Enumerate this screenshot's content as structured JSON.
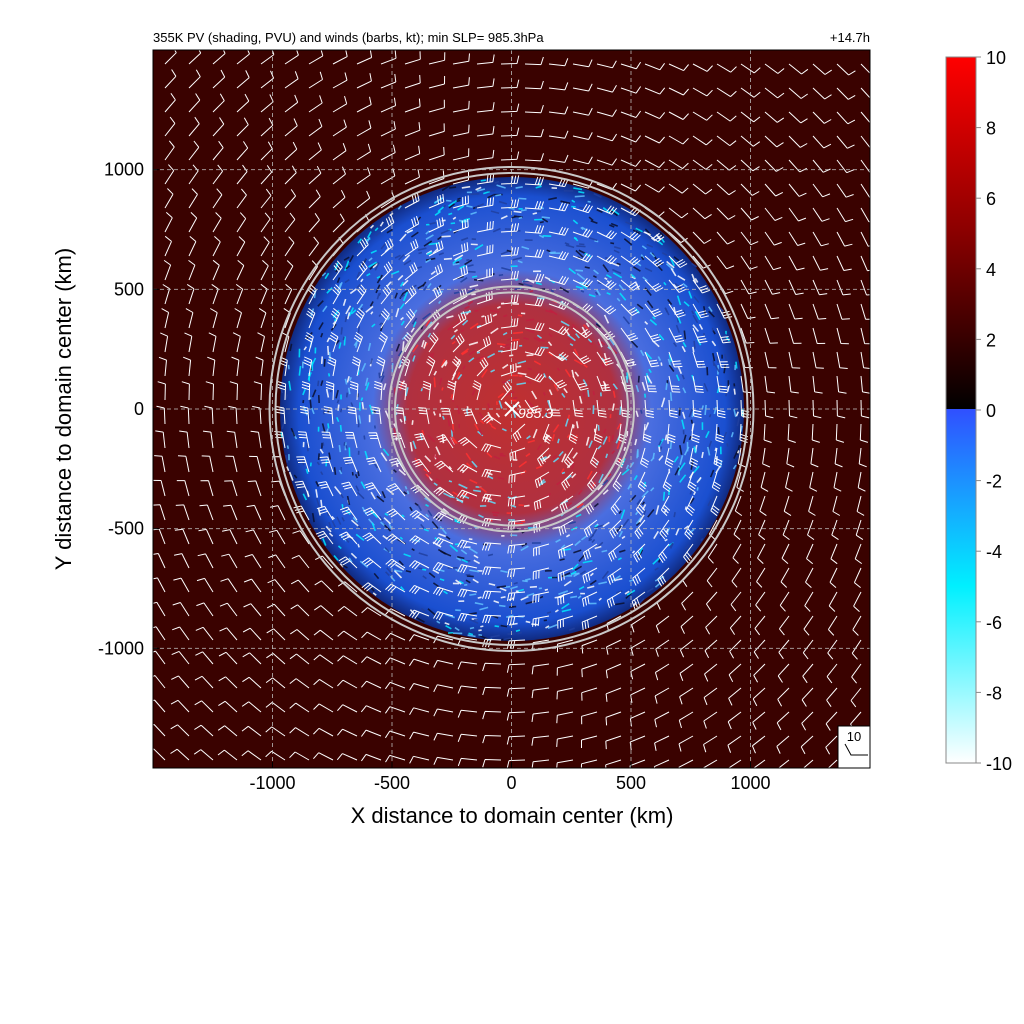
{
  "chart_data": {
    "type": "heatmap",
    "title": "355K PV (shading, PVU) and winds (barbs, kt); min SLP=  985.3hPa",
    "time_label": "+14.7h",
    "xlabel": "X distance to domain center (km)",
    "ylabel": "Y distance to domain center (km)",
    "xlim": [
      -1500,
      1500
    ],
    "ylim": [
      -1500,
      1500
    ],
    "x_ticks": [
      "-1000",
      "-500",
      "0",
      "500",
      "1000"
    ],
    "x_tick_values": [
      -1000,
      -500,
      0,
      500,
      1000
    ],
    "y_ticks": [
      "1000",
      "500",
      "0",
      "-500",
      "-1000"
    ],
    "y_tick_values": [
      1000,
      500,
      0,
      -500,
      -1000
    ],
    "grid": true,
    "center_marker_label": "985.3",
    "center_km": [
      0,
      0
    ],
    "ring_radii_km": [
      500,
      1000
    ],
    "colorbar": {
      "ticks": [
        "10",
        "8",
        "6",
        "4",
        "2",
        "0",
        "-2",
        "-4",
        "-6",
        "-8",
        "-10"
      ],
      "tick_values": [
        10,
        8,
        6,
        4,
        2,
        0,
        -2,
        -4,
        -6,
        -8,
        -10
      ],
      "range": [
        -10,
        10
      ],
      "positive_colors": [
        "#2a0000",
        "#ff0000"
      ],
      "negative_colors": [
        "#3050ff",
        "#00f0ff",
        "#ffffff"
      ]
    },
    "reference_barb_label": "10",
    "colors": {
      "background_pv": "#3a0200",
      "inner_pv": "#a02020",
      "outer_pv": "#1a4fd0",
      "barb": "#ffffff",
      "ring": "#c8c8c8"
    }
  }
}
